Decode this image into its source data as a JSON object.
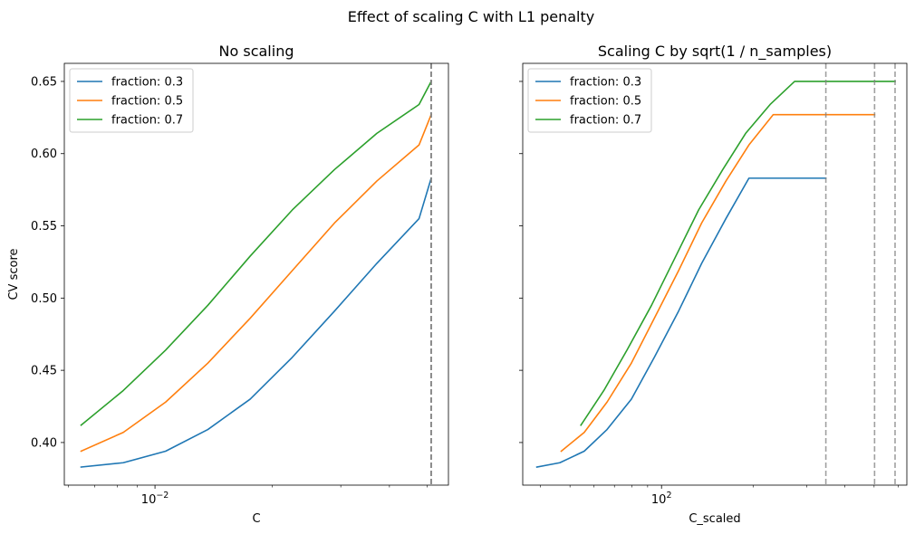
{
  "figure": {
    "suptitle": "Effect of scaling C with L1 penalty"
  },
  "colors": {
    "series": [
      "#1f77b4",
      "#ff7f0e",
      "#2ca02c"
    ],
    "vline": "#808080"
  },
  "chart_data": [
    {
      "type": "line",
      "title": "No scaling",
      "xlabel": "C",
      "ylabel": "CV score",
      "xscale": "log",
      "xlim": [
        0.00585,
        0.0567
      ],
      "ylim": [
        0.3705,
        0.6625
      ],
      "xticks": [
        {
          "value": 0.01,
          "base": "10",
          "exp": "−2"
        }
      ],
      "yticks": [
        "0.40",
        "0.45",
        "0.50",
        "0.55",
        "0.60",
        "0.65"
      ],
      "grid": false,
      "legend": "top-left",
      "vlines": [
        {
          "x": 0.0512,
          "style": "dashed"
        },
        {
          "x": 0.0512,
          "style": "dashed"
        },
        {
          "x": 0.0512,
          "style": "dashed"
        }
      ],
      "series": [
        {
          "name": "fraction: 0.3",
          "x": [
            0.00646,
            0.00829,
            0.01065,
            0.01367,
            0.01755,
            0.02252,
            0.02891,
            0.03712,
            0.04765,
            0.0512
          ],
          "y": [
            0.383,
            0.386,
            0.394,
            0.409,
            0.43,
            0.459,
            0.491,
            0.524,
            0.555,
            0.583
          ]
        },
        {
          "name": "fraction: 0.5",
          "x": [
            0.00646,
            0.00829,
            0.01065,
            0.01367,
            0.01755,
            0.02252,
            0.02891,
            0.03712,
            0.04765,
            0.0512
          ],
          "y": [
            0.394,
            0.407,
            0.428,
            0.455,
            0.486,
            0.519,
            0.552,
            0.581,
            0.606,
            0.627
          ]
        },
        {
          "name": "fraction: 0.7",
          "x": [
            0.00646,
            0.00829,
            0.01065,
            0.01367,
            0.01755,
            0.02252,
            0.02891,
            0.03712,
            0.04765,
            0.0512
          ],
          "y": [
            0.412,
            0.436,
            0.464,
            0.495,
            0.529,
            0.561,
            0.589,
            0.614,
            0.634,
            0.65
          ]
        }
      ]
    },
    {
      "type": "line",
      "title": "Scaling C by sqrt(1 / n_samples)",
      "xlabel": "C_scaled",
      "ylabel": "",
      "xscale": "log",
      "xlim": [
        34.96,
        640.7
      ],
      "ylim": [
        0.3705,
        0.6625
      ],
      "xticks": [
        {
          "value": 100,
          "base": "10",
          "exp": "2"
        }
      ],
      "yticks": [
        "0.40",
        "0.45",
        "0.50",
        "0.55",
        "0.60",
        "0.65"
      ],
      "sharey": true,
      "grid": false,
      "legend": "top-left",
      "vlines": [
        {
          "x": 347.0,
          "style": "dashed"
        },
        {
          "x": 501.8,
          "style": "dashed"
        },
        {
          "x": 586.0,
          "style": "dashed"
        }
      ],
      "series": [
        {
          "name": "fraction: 0.3",
          "x": [
            38.9,
            46.3,
            55.7,
            66.2,
            79.6,
            94.7,
            113.8,
            135.5,
            162.8,
            193.8,
            233.0,
            279.7,
            347.0
          ],
          "y": [
            0.383,
            0.386,
            0.394,
            0.409,
            0.43,
            0.459,
            0.491,
            0.524,
            0.555,
            0.583,
            0.583,
            0.583,
            0.583
          ]
        },
        {
          "name": "fraction: 0.5",
          "x": [
            46.8,
            55.7,
            66.2,
            79.6,
            94.7,
            113.8,
            135.5,
            162.8,
            193.8,
            233.0,
            279.7,
            337.9,
            408.0,
            501.8
          ],
          "y": [
            0.394,
            0.407,
            0.428,
            0.455,
            0.486,
            0.519,
            0.552,
            0.581,
            0.606,
            0.627,
            0.627,
            0.627,
            0.627,
            0.627
          ]
        },
        {
          "name": "fraction: 0.7",
          "x": [
            54.3,
            64.6,
            77.0,
            92.7,
            111.4,
            132.4,
            159.0,
            189.0,
            227.5,
            273.9,
            330.3,
            395.6,
            475.0,
            586.0
          ],
          "y": [
            0.412,
            0.436,
            0.464,
            0.495,
            0.529,
            0.561,
            0.589,
            0.614,
            0.634,
            0.65,
            0.65,
            0.65,
            0.65,
            0.65
          ]
        }
      ]
    }
  ]
}
